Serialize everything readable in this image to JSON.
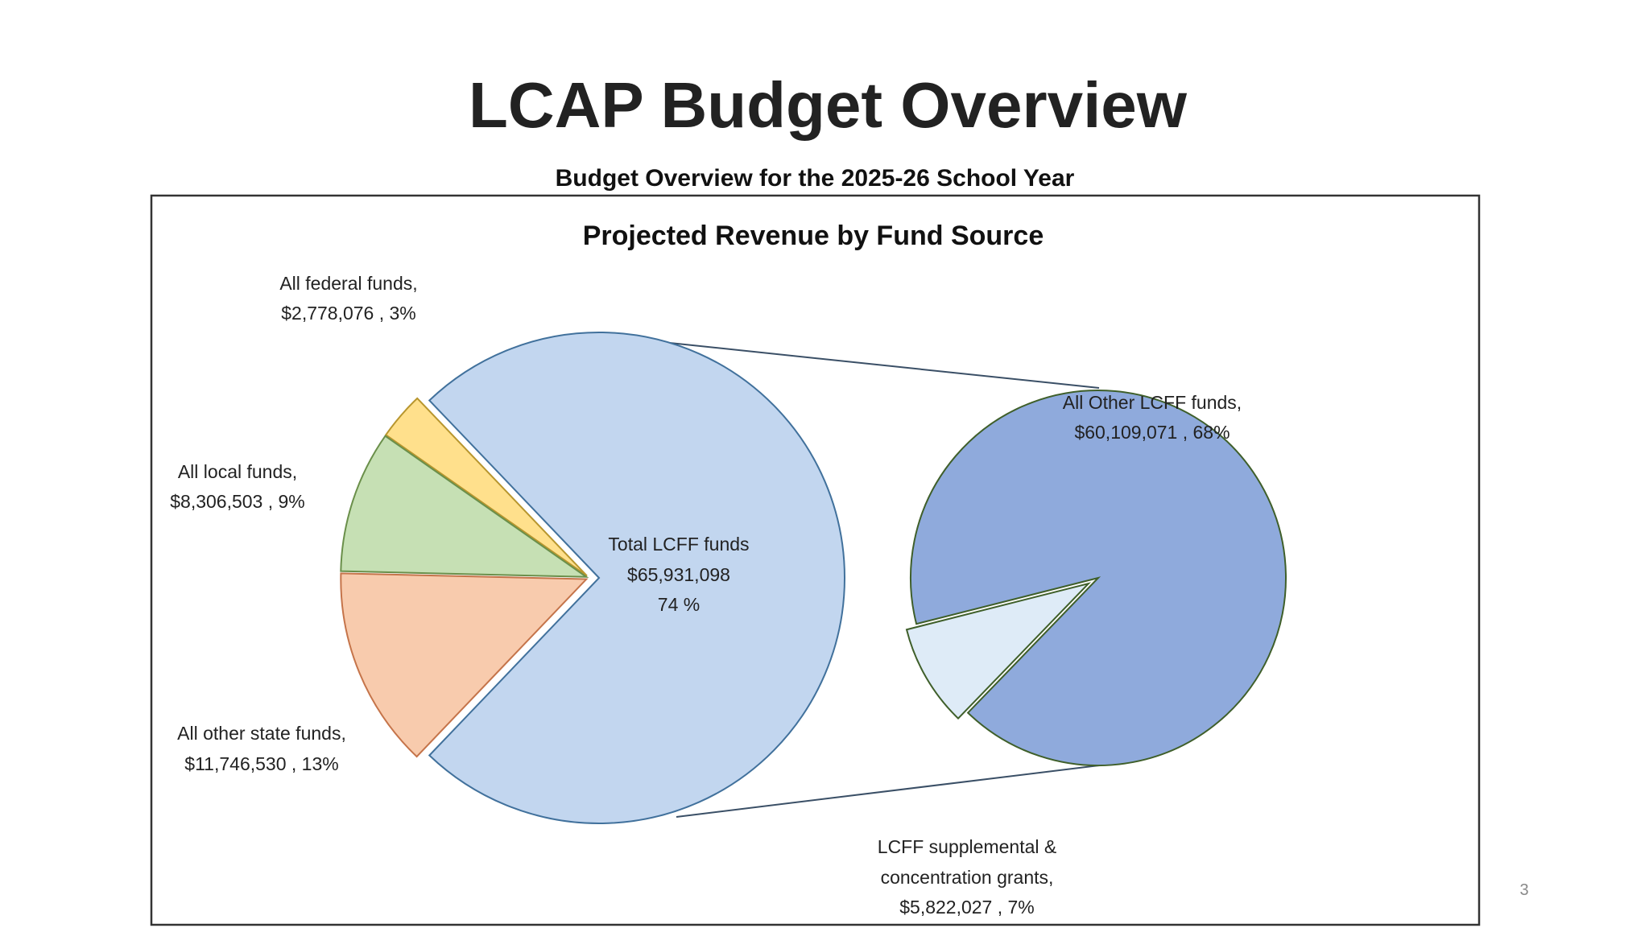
{
  "page": {
    "title": "LCAP Budget Overview",
    "subtitle": "Budget Overview for the 2025-26 School Year",
    "page_number": "3"
  },
  "chart_data": {
    "type": "pie",
    "variant": "pie-of-pie",
    "title": "Projected Revenue by Fund Source",
    "main_pie": [
      {
        "name": "Total LCFF funds",
        "value": 65931098,
        "percent": 74,
        "color": "#c2d6ef",
        "label": [
          "Total LCFF funds",
          "$65,931,098",
          "74 %"
        ]
      },
      {
        "name": "All federal funds",
        "value": 2778076,
        "percent": 3,
        "color": "#ffe08c",
        "label": [
          "All federal funds,",
          "$2,778,076 , 3%"
        ]
      },
      {
        "name": "All local funds",
        "value": 8306503,
        "percent": 9,
        "color": "#c6e0b4",
        "label": [
          "All local funds,",
          "$8,306,503 , 9%"
        ]
      },
      {
        "name": "All other state funds",
        "value": 11746530,
        "percent": 13,
        "color": "#f8cbad",
        "label": [
          "All other state funds,",
          "$11,746,530 , 13%"
        ]
      }
    ],
    "secondary_pie": [
      {
        "name": "All Other LCFF funds",
        "value": 60109071,
        "percent": 68,
        "color": "#8faadc",
        "label": [
          "All Other LCFF funds,",
          "$60,109,071 , 68%"
        ]
      },
      {
        "name": "LCFF supplemental & concentration grants",
        "value": 5822027,
        "percent": 7,
        "color": "#deebf7",
        "label": [
          "LCFF supplemental &",
          "concentration grants,",
          "$5,822,027 , 7%"
        ]
      }
    ],
    "legend": "none (data labels)"
  }
}
